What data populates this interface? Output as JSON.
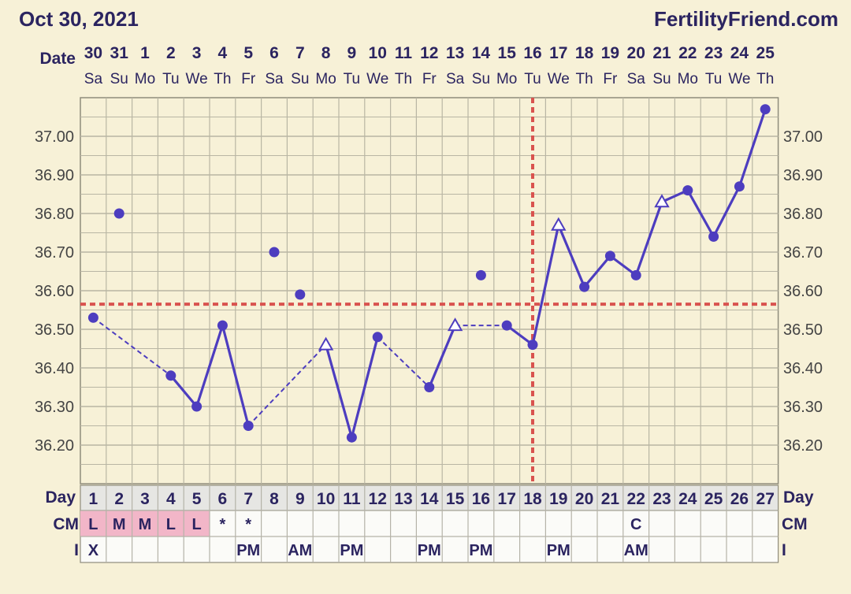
{
  "header": {
    "date_text": "Oct 30, 2021",
    "brand": "FertilityFriend.com"
  },
  "labels": {
    "date_row": "Date",
    "day_row": "Day",
    "cm_row": "CM",
    "i_row": "I"
  },
  "chart_data": {
    "type": "line",
    "title": "",
    "date_labels": [
      "30",
      "31",
      "1",
      "2",
      "3",
      "4",
      "5",
      "6",
      "7",
      "8",
      "9",
      "10",
      "11",
      "12",
      "13",
      "14",
      "15",
      "16",
      "17",
      "18",
      "19",
      "20",
      "21",
      "22",
      "23",
      "24",
      "25"
    ],
    "weekday_labels": [
      "Sa",
      "Su",
      "Mo",
      "Tu",
      "We",
      "Th",
      "Fr",
      "Sa",
      "Su",
      "Mo",
      "Tu",
      "We",
      "Th",
      "Fr",
      "Sa",
      "Su",
      "Mo",
      "Tu",
      "We",
      "Th",
      "Fr",
      "Sa",
      "Su",
      "Mo",
      "Tu",
      "We",
      "Th"
    ],
    "cycle_days": [
      1,
      2,
      3,
      4,
      5,
      6,
      7,
      8,
      9,
      10,
      11,
      12,
      13,
      14,
      15,
      16,
      17,
      18,
      19,
      20,
      21,
      22,
      23,
      24,
      25,
      26,
      27
    ],
    "ylim": [
      36.1,
      37.15
    ],
    "yticks": [
      "36.20",
      "36.30",
      "36.40",
      "36.50",
      "36.60",
      "36.70",
      "36.80",
      "36.90",
      "37.00"
    ],
    "temperatures": [
      {
        "day": 1,
        "temp": 36.53,
        "marker": "dot"
      },
      {
        "day": 2,
        "temp": 36.8,
        "marker": "dot",
        "discarded": true
      },
      {
        "day": 4,
        "temp": 36.38,
        "marker": "dot"
      },
      {
        "day": 5,
        "temp": 36.3,
        "marker": "dot"
      },
      {
        "day": 6,
        "temp": 36.51,
        "marker": "dot"
      },
      {
        "day": 7,
        "temp": 36.25,
        "marker": "dot"
      },
      {
        "day": 8,
        "temp": 36.7,
        "marker": "dot",
        "discarded": true
      },
      {
        "day": 9,
        "temp": 36.59,
        "marker": "dot",
        "discarded": true
      },
      {
        "day": 10,
        "temp": 36.46,
        "marker": "triangle"
      },
      {
        "day": 11,
        "temp": 36.22,
        "marker": "dot"
      },
      {
        "day": 12,
        "temp": 36.48,
        "marker": "dot"
      },
      {
        "day": 14,
        "temp": 36.35,
        "marker": "dot"
      },
      {
        "day": 15,
        "temp": 36.51,
        "marker": "triangle"
      },
      {
        "day": 16,
        "temp": 36.64,
        "marker": "dot",
        "discarded": true
      },
      {
        "day": 17,
        "temp": 36.51,
        "marker": "dot"
      },
      {
        "day": 18,
        "temp": 36.46,
        "marker": "dot"
      },
      {
        "day": 19,
        "temp": 36.77,
        "marker": "triangle"
      },
      {
        "day": 20,
        "temp": 36.61,
        "marker": "dot"
      },
      {
        "day": 21,
        "temp": 36.69,
        "marker": "dot"
      },
      {
        "day": 22,
        "temp": 36.64,
        "marker": "dot"
      },
      {
        "day": 23,
        "temp": 36.83,
        "marker": "triangle"
      },
      {
        "day": 24,
        "temp": 36.86,
        "marker": "dot"
      },
      {
        "day": 25,
        "temp": 36.74,
        "marker": "dot"
      },
      {
        "day": 26,
        "temp": 36.87,
        "marker": "dot"
      },
      {
        "day": 27,
        "temp": 37.07,
        "marker": "dot"
      }
    ],
    "segments": [
      {
        "from": 1,
        "to": 4,
        "style": "dashed"
      },
      {
        "from": 4,
        "to": 5,
        "style": "solid"
      },
      {
        "from": 5,
        "to": 6,
        "style": "solid"
      },
      {
        "from": 6,
        "to": 7,
        "style": "solid"
      },
      {
        "from": 7,
        "to": 10,
        "style": "dashed"
      },
      {
        "from": 10,
        "to": 11,
        "style": "solid"
      },
      {
        "from": 11,
        "to": 12,
        "style": "solid"
      },
      {
        "from": 12,
        "to": 14,
        "style": "dashed"
      },
      {
        "from": 14,
        "to": 15,
        "style": "solid"
      },
      {
        "from": 15,
        "to": 17,
        "style": "dashed"
      },
      {
        "from": 17,
        "to": 18,
        "style": "solid"
      },
      {
        "from": 18,
        "to": 19,
        "style": "solid"
      },
      {
        "from": 19,
        "to": 20,
        "style": "solid"
      },
      {
        "from": 20,
        "to": 21,
        "style": "solid"
      },
      {
        "from": 21,
        "to": 22,
        "style": "solid"
      },
      {
        "from": 22,
        "to": 23,
        "style": "solid"
      },
      {
        "from": 23,
        "to": 24,
        "style": "solid"
      },
      {
        "from": 24,
        "to": 25,
        "style": "solid"
      },
      {
        "from": 25,
        "to": 26,
        "style": "solid"
      },
      {
        "from": 26,
        "to": 27,
        "style": "solid"
      }
    ],
    "coverline_temp": 36.565,
    "ovulation_day": 18,
    "cm_row": [
      "L",
      "M",
      "M",
      "L",
      "L",
      "*",
      "*",
      "",
      "",
      "",
      "",
      "",
      "",
      "",
      "",
      "",
      "",
      "",
      "",
      "",
      "",
      "C",
      "",
      "",
      "",
      "",
      ""
    ],
    "cm_highlight_days": [
      1,
      2,
      3,
      4,
      5
    ],
    "i_row": [
      "X",
      "",
      "",
      "",
      "",
      "",
      "PM",
      "",
      "AM",
      "",
      "PM",
      "",
      "",
      "PM",
      "",
      "PM",
      "",
      "",
      "PM",
      "",
      "",
      "AM",
      "",
      "",
      "",
      "",
      ""
    ],
    "grid": true
  },
  "colors": {
    "background": "#f7f1d7",
    "grid": "#b9b6a4",
    "line": "#4d3dbf",
    "coverline": "#d9534f",
    "text": "#2b2460",
    "cm_highlight": "#f2b6c8",
    "row_band": "#e6e6e3"
  }
}
